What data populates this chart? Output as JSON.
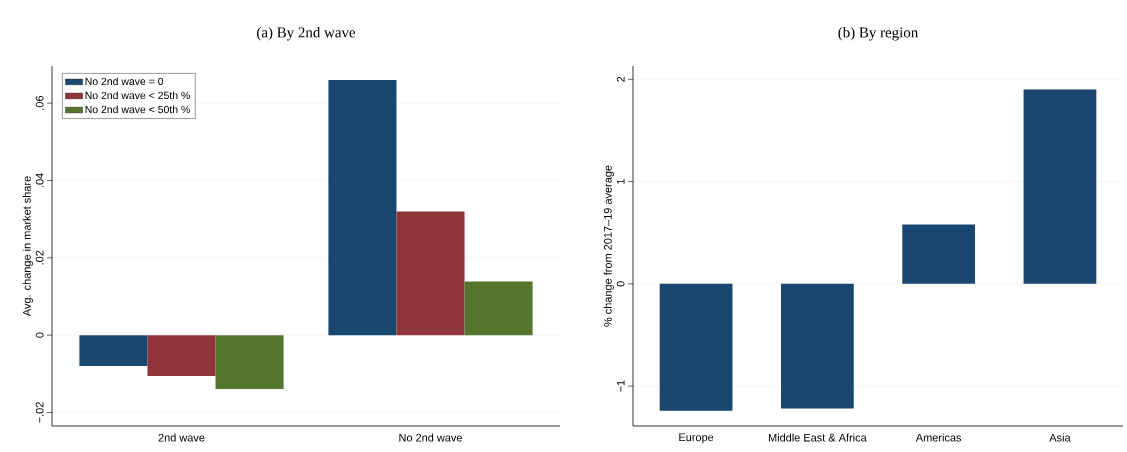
{
  "chart_data": [
    {
      "type": "bar",
      "title": "(a) By 2nd wave",
      "ylabel": "Avg. change in market share",
      "categories": [
        "2nd wave",
        "No 2nd wave"
      ],
      "series": [
        {
          "name": "No 2nd wave = 0",
          "color": "#1a476f",
          "values": [
            -0.008,
            0.066
          ]
        },
        {
          "name": "No 2nd wave < 25th %",
          "color": "#90353b",
          "values": [
            -0.0106,
            0.032
          ]
        },
        {
          "name": "No 2nd wave < 50th %",
          "color": "#55752f",
          "values": [
            -0.0139,
            0.0139
          ]
        }
      ],
      "ylim": [
        -0.0235,
        0.0696
      ],
      "yticks": [
        {
          "value": -0.02,
          "label": "−.02"
        },
        0,
        {
          "value": 0.02,
          "label": ".02"
        },
        {
          "value": 0.04,
          "label": ".04"
        },
        {
          "value": 0.06,
          "label": ".06"
        }
      ],
      "grid": "y",
      "legend": "top left"
    },
    {
      "type": "bar",
      "title": "(b) By region",
      "ylabel": "% change from 2017–19 average",
      "categories": [
        "Europe",
        "Middle East & Africa",
        "Americas",
        "Asia"
      ],
      "values": [
        -1.24,
        -1.22,
        0.58,
        1.9
      ],
      "color": "#1a476f",
      "ylim": [
        -1.39,
        2.13
      ],
      "yticks": [
        {
          "value": -1,
          "label": "−1"
        },
        0,
        1,
        2
      ],
      "grid": "y"
    }
  ]
}
